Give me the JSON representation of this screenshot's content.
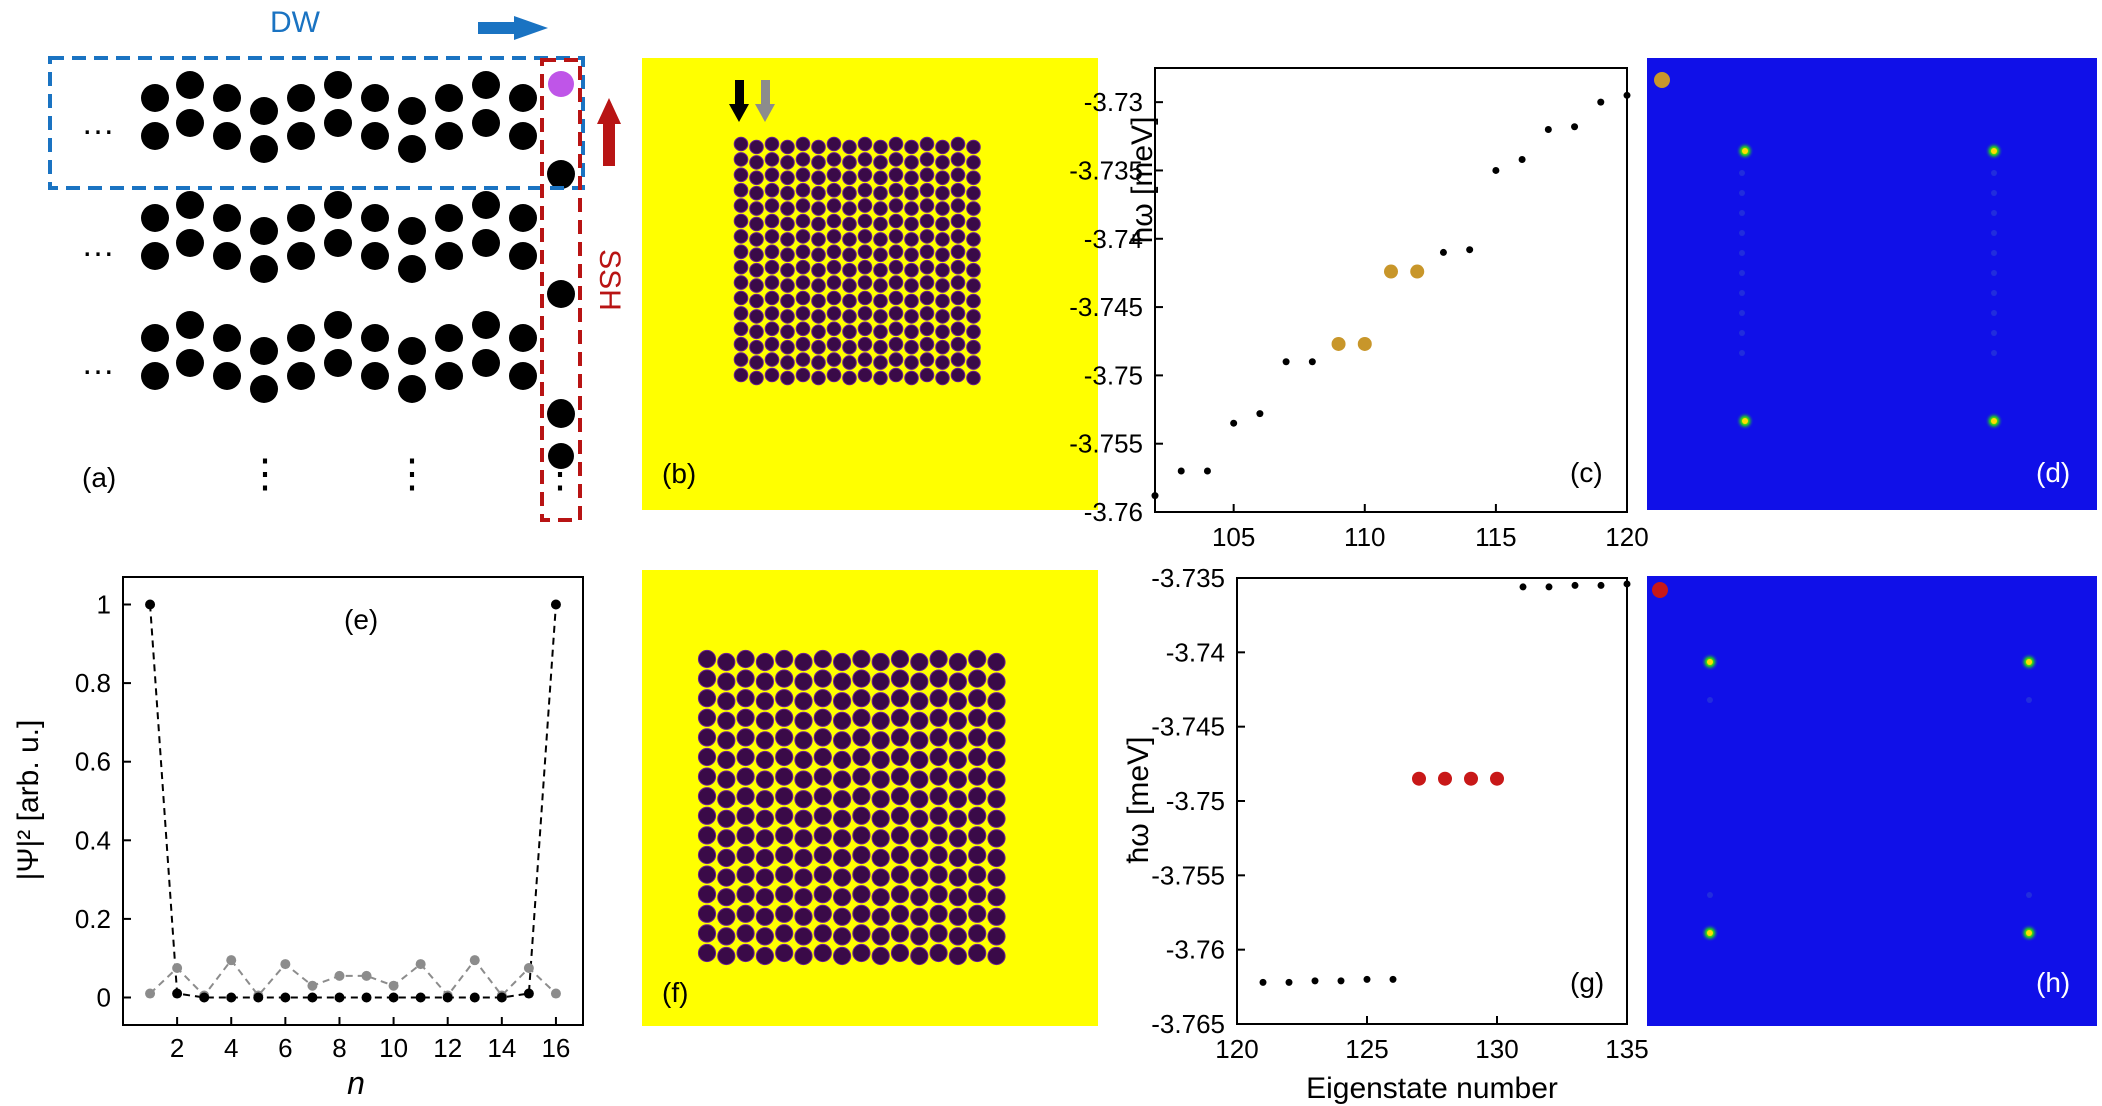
{
  "figure": {
    "panel_labels": [
      "(a)",
      "(b)",
      "(c)",
      "(d)",
      "(e)",
      "(f)",
      "(g)",
      "(h)"
    ],
    "schematic": {
      "dw_label": "DW",
      "ssh_label": "SSH",
      "ellipsis_h": "…",
      "ellipsis_v": "⋮",
      "colors": {
        "dw": "#1a73c2",
        "ssh": "#b81414",
        "corner": "#bf55e8",
        "dot": "#000000"
      }
    },
    "lattice_colors": {
      "background": "#ffff00",
      "site": "#3a0a48",
      "arrow_black": "#000000",
      "arrow_gray": "#8c8c8c"
    },
    "mode_colors": {
      "background": "#1010e8",
      "peak_center": "#ffdd00",
      "peak_edge": "#22cc22"
    }
  },
  "chart_data": [
    {
      "id": "c",
      "type": "scatter",
      "xlabel": "",
      "ylabel": "ħω [meV]",
      "xlim": [
        102,
        120
      ],
      "ylim": [
        -3.76,
        -3.7275
      ],
      "xticks": [
        "105",
        "110",
        "115",
        "120"
      ],
      "yticks": [
        "-3.73",
        "-3.735",
        "-3.74",
        "-3.745",
        "-3.75",
        "-3.755",
        "-3.76"
      ],
      "x": [
        102,
        103,
        104,
        105,
        106,
        107,
        108,
        109,
        110,
        111,
        112,
        113,
        114,
        115,
        116,
        117,
        118,
        119,
        120
      ],
      "y": [
        -3.7588,
        -3.757,
        -3.757,
        -3.7535,
        -3.7528,
        -3.749,
        -3.749,
        -3.7477,
        -3.7477,
        -3.7424,
        -3.7424,
        -3.741,
        -3.7408,
        -3.735,
        -3.7342,
        -3.732,
        -3.7318,
        -3.73,
        -3.7295
      ],
      "highlight_color": "#c8962a",
      "highlight_x": [
        109,
        110,
        111,
        112
      ]
    },
    {
      "id": "g",
      "type": "scatter",
      "xlabel": "Eigenstate number",
      "ylabel": "ħω [meV]",
      "xlim": [
        120,
        135
      ],
      "ylim": [
        -3.765,
        -3.735
      ],
      "xticks": [
        "120",
        "125",
        "130",
        "135"
      ],
      "yticks": [
        "-3.735",
        "-3.74",
        "-3.745",
        "-3.75",
        "-3.755",
        "-3.76",
        "-3.765"
      ],
      "x": [
        121,
        122,
        123,
        124,
        125,
        126,
        127,
        128,
        129,
        130,
        131,
        132,
        133,
        134,
        135
      ],
      "y": [
        -3.7622,
        -3.7622,
        -3.7621,
        -3.7621,
        -3.762,
        -3.762,
        -3.7485,
        -3.7485,
        -3.7485,
        -3.7485,
        -3.7356,
        -3.7356,
        -3.7355,
        -3.7355,
        -3.7354
      ],
      "highlight_color": "#c81818",
      "highlight_x": [
        127,
        128,
        129,
        130
      ]
    },
    {
      "id": "e",
      "type": "line",
      "xlabel": "n",
      "ylabel": "|Ψ|² [arb. u.]",
      "xlim": [
        0,
        17
      ],
      "ylim": [
        -0.07,
        1.07
      ],
      "xticks": [
        "2",
        "4",
        "6",
        "8",
        "10",
        "12",
        "14",
        "16"
      ],
      "yticks": [
        "0",
        "0.2",
        "0.4",
        "0.6",
        "0.8",
        "1"
      ],
      "x": [
        1,
        2,
        3,
        4,
        5,
        6,
        7,
        8,
        9,
        10,
        11,
        12,
        13,
        14,
        15,
        16
      ],
      "series": [
        {
          "name": "black",
          "color": "#000000",
          "values": [
            1.0,
            0.01,
            0.0,
            0.0,
            0.0,
            0.0,
            0.0,
            0.0,
            0.0,
            0.0,
            0.0,
            0.0,
            0.0,
            0.0,
            0.01,
            1.0
          ]
        },
        {
          "name": "gray",
          "color": "#8c8c8c",
          "values": [
            0.01,
            0.075,
            0.005,
            0.095,
            0.005,
            0.085,
            0.03,
            0.055,
            0.055,
            0.03,
            0.085,
            0.005,
            0.095,
            0.005,
            0.075,
            0.01
          ]
        }
      ]
    }
  ]
}
